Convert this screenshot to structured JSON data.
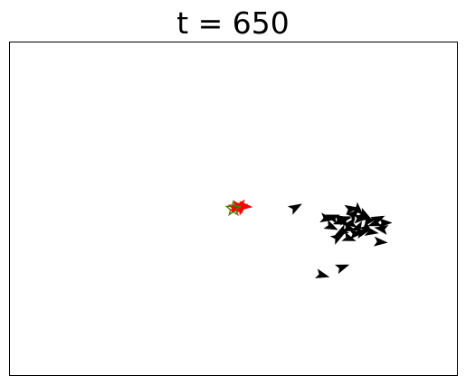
{
  "chart_data": {
    "type": "scatter",
    "title": "t = 650",
    "xlabel": "",
    "ylabel": "",
    "grid": false,
    "axes_ticks": false,
    "colors": {
      "flock": "#000000",
      "leader": "#ff0000",
      "target": "#4a7f10"
    },
    "target": {
      "x": 0.5,
      "y": 0.5,
      "marker": "star"
    },
    "series": [
      {
        "role": "leader",
        "color": "#ff0000",
        "points": [
          {
            "x": 0.505,
            "y": 0.505,
            "angle": -20
          },
          {
            "x": 0.512,
            "y": 0.508,
            "angle": 10
          },
          {
            "x": 0.52,
            "y": 0.503,
            "angle": -35
          },
          {
            "x": 0.528,
            "y": 0.507,
            "angle": 5
          },
          {
            "x": 0.509,
            "y": 0.498,
            "angle": 30
          },
          {
            "x": 0.516,
            "y": 0.512,
            "angle": -50
          }
        ]
      },
      {
        "role": "flock",
        "color": "#000000",
        "points": [
          {
            "x": 0.64,
            "y": 0.505,
            "angle": -30
          },
          {
            "x": 0.71,
            "y": 0.47,
            "angle": 10
          },
          {
            "x": 0.72,
            "y": 0.475,
            "angle": -160
          },
          {
            "x": 0.74,
            "y": 0.46,
            "angle": 20
          },
          {
            "x": 0.75,
            "y": 0.47,
            "angle": -20
          },
          {
            "x": 0.76,
            "y": 0.455,
            "angle": 170
          },
          {
            "x": 0.77,
            "y": 0.485,
            "angle": -40
          },
          {
            "x": 0.785,
            "y": 0.47,
            "angle": 0
          },
          {
            "x": 0.795,
            "y": 0.48,
            "angle": 30
          },
          {
            "x": 0.805,
            "y": 0.465,
            "angle": -10
          },
          {
            "x": 0.815,
            "y": 0.455,
            "angle": 160
          },
          {
            "x": 0.825,
            "y": 0.47,
            "angle": -25
          },
          {
            "x": 0.76,
            "y": 0.44,
            "angle": 15
          },
          {
            "x": 0.78,
            "y": 0.445,
            "angle": -60
          },
          {
            "x": 0.8,
            "y": 0.44,
            "angle": 40
          },
          {
            "x": 0.79,
            "y": 0.43,
            "angle": -15
          },
          {
            "x": 0.74,
            "y": 0.43,
            "angle": 150
          },
          {
            "x": 0.72,
            "y": 0.445,
            "angle": 25
          },
          {
            "x": 0.775,
            "y": 0.425,
            "angle": -5
          },
          {
            "x": 0.81,
            "y": 0.43,
            "angle": 10
          },
          {
            "x": 0.83,
            "y": 0.44,
            "angle": -170
          },
          {
            "x": 0.84,
            "y": 0.458,
            "angle": 0
          },
          {
            "x": 0.765,
            "y": 0.5,
            "angle": -10
          },
          {
            "x": 0.78,
            "y": 0.495,
            "angle": 45
          },
          {
            "x": 0.735,
            "y": 0.415,
            "angle": -30
          },
          {
            "x": 0.83,
            "y": 0.4,
            "angle": 5
          },
          {
            "x": 0.76,
            "y": 0.41,
            "angle": 20
          },
          {
            "x": 0.745,
            "y": 0.47,
            "angle": -150
          },
          {
            "x": 0.7,
            "y": 0.3,
            "angle": 15
          },
          {
            "x": 0.745,
            "y": 0.325,
            "angle": -20
          }
        ]
      }
    ]
  }
}
